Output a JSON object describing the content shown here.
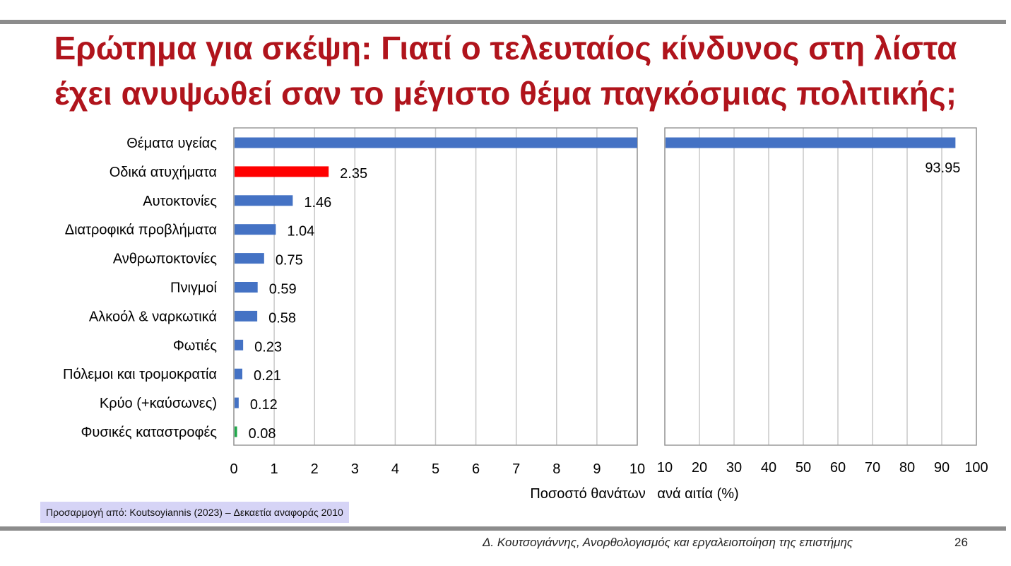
{
  "title": {
    "line1": "Ερώτημα για σκέψη: Γιατί ο τελευταίος κίνδυνος στη λίστα",
    "line2": "έχει ανυψωθεί σαν το μέγιστο θέμα παγκόσμιας πολιτικής;"
  },
  "chart_data": {
    "type": "bar",
    "orientation": "horizontal",
    "broken_axis": true,
    "categories": [
      "Θέματα υγείας",
      "Οδικά ατυχήματα",
      "Αυτοκτονίες",
      "Διατροφικά προβλήματα",
      "Ανθρωποκτονίες",
      "Πνιγμοί",
      "Αλκοόλ & ναρκωτικά",
      "Φωτιές",
      "Πόλεμοι και τρομοκρατία",
      "Κρύο (+καύσωνες)",
      "Φυσικές καταστροφές"
    ],
    "values": [
      93.95,
      2.35,
      1.46,
      1.04,
      0.75,
      0.59,
      0.58,
      0.23,
      0.21,
      0.12,
      0.08
    ],
    "data_labels": [
      "93.95",
      "2.35",
      "1.46",
      "1.04",
      "0.75",
      "0.59",
      "0.58",
      "0.23",
      "0.21",
      "0.12",
      "0.08"
    ],
    "bar_colors": [
      "#4472c4",
      "#ff0000",
      "#4472c4",
      "#4472c4",
      "#4472c4",
      "#4472c4",
      "#4472c4",
      "#4472c4",
      "#4472c4",
      "#4472c4",
      "#1fa84a"
    ],
    "left_panel": {
      "xlim": [
        0,
        10
      ],
      "ticks": [
        "0",
        "1",
        "2",
        "3",
        "4",
        "5",
        "6",
        "7",
        "8",
        "9",
        "10"
      ]
    },
    "right_panel": {
      "xlim": [
        10,
        100
      ],
      "ticks": [
        "10",
        "20",
        "30",
        "40",
        "50",
        "60",
        "70",
        "80",
        "90",
        "100"
      ]
    },
    "xlabel": "Ποσοστό θανάτων   ανά αιτία (%)",
    "grid": true,
    "colors": {
      "gridline": "#c8c8c8",
      "axis": "#9a9a9a"
    }
  },
  "source_note": "Προσαρμογή από: Koutsoyiannis (2023) – Δεκαετία αναφοράς 2010",
  "footer": {
    "text": "Δ. Κουτσογιάννης, Ανορθολογισμός και εργαλειοποίηση της επιστήμης",
    "page_number": "26"
  },
  "colors": {
    "title": "#b0141c",
    "rule": "#8c8c8c",
    "source_box": "#d6d4f6"
  }
}
